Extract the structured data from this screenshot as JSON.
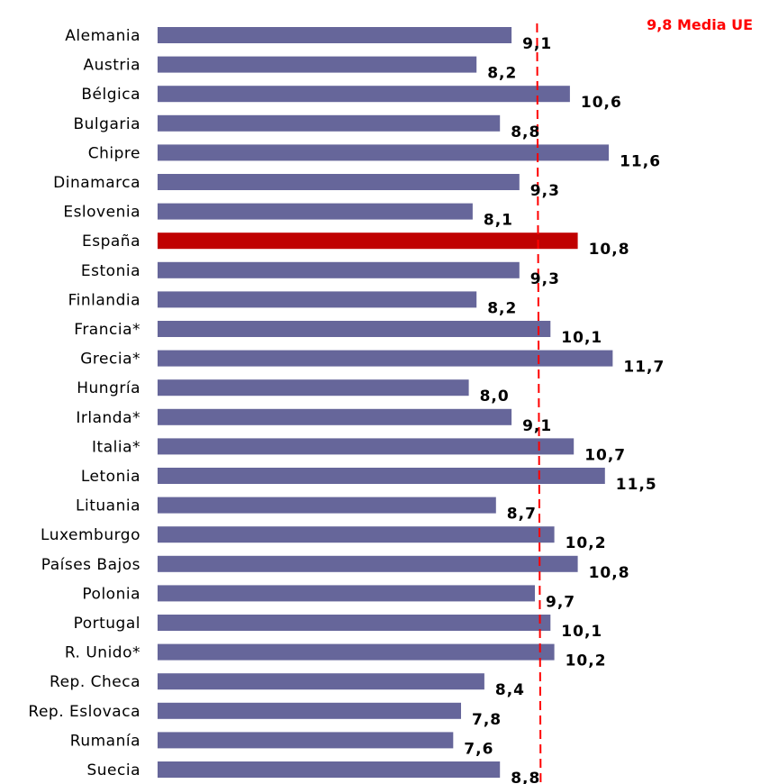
{
  "chart_data": {
    "type": "bar",
    "orientation": "horizontal",
    "categories": [
      "Alemania",
      "Austria",
      "Bélgica",
      "Bulgaria",
      "Chipre",
      "Dinamarca",
      "Eslovenia",
      "España",
      "Estonia",
      "Finlandia",
      "Francia*",
      "Grecia*",
      "Hungría",
      "Irlanda*",
      "Italia*",
      "Letonia",
      "Lituania",
      "Luxemburgo",
      "Países Bajos",
      "Polonia",
      "Portugal",
      "R. Unido*",
      "Rep. Checa",
      "Rep. Eslovaca",
      "Rumanía",
      "Suecia"
    ],
    "values": [
      9.1,
      8.2,
      10.6,
      8.8,
      11.6,
      9.3,
      8.1,
      10.8,
      9.3,
      8.2,
      10.1,
      11.7,
      8.0,
      9.1,
      10.7,
      11.5,
      8.7,
      10.2,
      10.8,
      9.7,
      10.1,
      10.2,
      8.4,
      7.8,
      7.6,
      8.8
    ],
    "value_labels": [
      "9,1",
      "8,2",
      "10,6",
      "8,8",
      "11,6",
      "9,3",
      "8,1",
      "10,8",
      "9,3",
      "8,2",
      "10,1",
      "11,7",
      "8,0",
      "9,1",
      "10,7",
      "11,5",
      "8,7",
      "10,2",
      "10,8",
      "9,7",
      "10,1",
      "10,2",
      "8,4",
      "7,8",
      "7,6",
      "8,8"
    ],
    "highlight_category": "España",
    "reference_line": {
      "value": 9.8,
      "label": "9,8 Media UE",
      "style": "dashed"
    },
    "colors": {
      "bar": "#66669a",
      "highlight": "#c00000",
      "reference": "#ff0000"
    },
    "title": "",
    "xlabel": "",
    "ylabel": "",
    "xlim": [
      0,
      11.7
    ],
    "grid": false,
    "legend": "none"
  }
}
